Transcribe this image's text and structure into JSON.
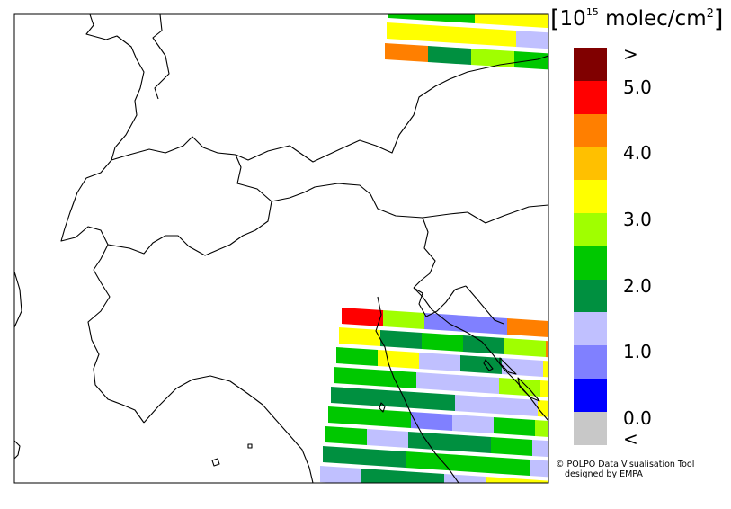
{
  "legend": {
    "units_prefix": "10",
    "units_exp": "15",
    "units_mid": " molec/cm",
    "units_sq": "2",
    "swatches": [
      {
        "color": "#800000",
        "label": ">"
      },
      {
        "color": "#ff0000",
        "label": "5.0"
      },
      {
        "color": "#ff7f00",
        "label": ""
      },
      {
        "color": "#ffc000",
        "label": "4.0"
      },
      {
        "color": "#ffff00",
        "label": ""
      },
      {
        "color": "#a0ff00",
        "label": "3.0"
      },
      {
        "color": "#00c800",
        "label": ""
      },
      {
        "color": "#009040",
        "label": "2.0"
      },
      {
        "color": "#c0c0ff",
        "label": ""
      },
      {
        "color": "#8080ff",
        "label": "1.0"
      },
      {
        "color": "#0000ff",
        "label": ""
      },
      {
        "color": "#c8c8c8",
        "label": "0.0"
      }
    ],
    "below_label": "<"
  },
  "credits": {
    "line1": "© POLPO Data Visualisation Tool",
    "line2": "designed by EMPA"
  },
  "map": {
    "background": "#ffffff",
    "border_color": "#000000",
    "top_swath": [
      [
        "#00c800",
        "#00c800",
        "#ffff00",
        "#ffff00",
        "#8080ff"
      ],
      [
        "#ffff00",
        "#ffff00",
        "#ffff00",
        "#c0c0ff",
        "#009040"
      ],
      [
        "#ff7f00",
        "#009040",
        "#a0ff00",
        "#00c800",
        "#00c800"
      ]
    ],
    "bottom_swath": [
      [
        "#ff0000",
        "#a0ff00",
        "#8080ff",
        "#8080ff",
        "#ff7f00",
        "#00c800"
      ],
      [
        "#ffff00",
        "#009040",
        "#00c800",
        "#009040",
        "#a0ff00",
        "#ff7f00"
      ],
      [
        "#00c800",
        "#ffff00",
        "#c0c0ff",
        "#009040",
        "#c0c0ff",
        "#ffff00"
      ],
      [
        "#00c800",
        "#00c800",
        "#c0c0ff",
        "#c0c0ff",
        "#a0ff00",
        "#ffff00"
      ],
      [
        "#009040",
        "#009040",
        "#009040",
        "#c0c0ff",
        "#c0c0ff",
        "#ffff00"
      ],
      [
        "#00c800",
        "#00c800",
        "#8080ff",
        "#c0c0ff",
        "#00c800",
        "#a0ff00"
      ],
      [
        "#00c800",
        "#c0c0ff",
        "#009040",
        "#009040",
        "#00c800",
        "#c0c0ff"
      ],
      [
        "#009040",
        "#009040",
        "#00c800",
        "#00c800",
        "#00c800",
        "#c0c0ff"
      ],
      [
        "#c0c0ff",
        "#009040",
        "#009040",
        "#c0c0ff",
        "#ffff00",
        "#ffff00"
      ],
      [
        "#a0ff00",
        "#a0ff00",
        "#00c800",
        "#a0ff00",
        "#00c800",
        "#00c800"
      ]
    ]
  }
}
